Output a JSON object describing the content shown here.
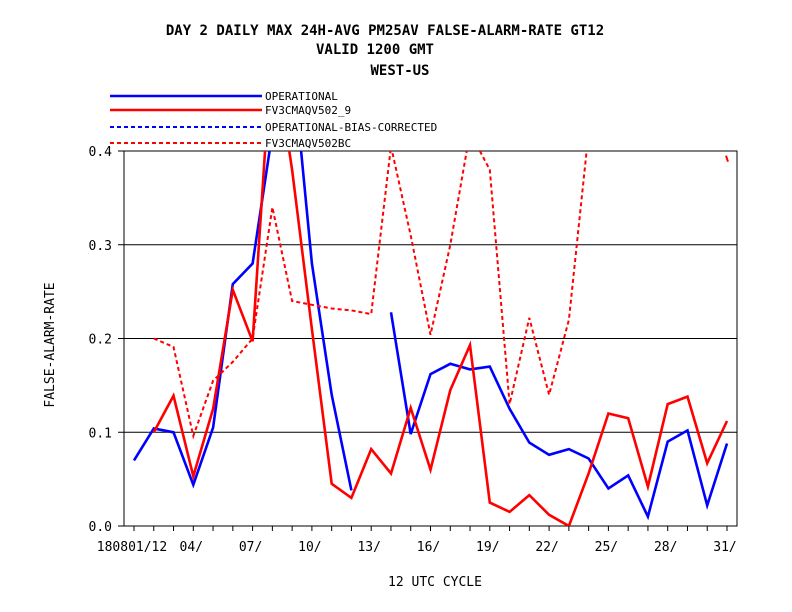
{
  "chart_data": {
    "type": "line",
    "title_lines": [
      "DAY 2 DAILY MAX   24H-AVG PM25AV FALSE-ALARM-RATE GT12",
      "VALID 1200 GMT",
      "WEST-US"
    ],
    "xlabel": "12 UTC CYCLE",
    "ylabel": "FALSE-ALARM-RATE",
    "ylim": [
      0.0,
      0.4
    ],
    "yticks": [
      "0.0",
      "0.1",
      "0.2",
      "0.3",
      "0.4"
    ],
    "xlim": [
      0,
      31
    ],
    "xtick_labels": [
      {
        "day": 1,
        "label": "180801/12"
      },
      {
        "day": 4,
        "label": "04/"
      },
      {
        "day": 7,
        "label": "07/"
      },
      {
        "day": 10,
        "label": "10/"
      },
      {
        "day": 13,
        "label": "13/"
      },
      {
        "day": 16,
        "label": "16/"
      },
      {
        "day": 19,
        "label": "19/"
      },
      {
        "day": 22,
        "label": "22/"
      },
      {
        "day": 25,
        "label": "25/"
      },
      {
        "day": 28,
        "label": "28/"
      },
      {
        "day": 31,
        "label": "31/"
      }
    ],
    "grid": "horizontal",
    "legend_position": "top-left",
    "series": [
      {
        "name": "OPERATIONAL",
        "color": "#0000ff",
        "dash": "solid",
        "points": [
          [
            1,
            0.07
          ],
          [
            2,
            0.104
          ],
          [
            3,
            0.1
          ],
          [
            4,
            0.044
          ],
          [
            5,
            0.105
          ],
          [
            6,
            0.258
          ],
          [
            7,
            0.28
          ],
          [
            8,
            0.42
          ],
          [
            9,
            0.5
          ],
          [
            10,
            0.28
          ],
          [
            11,
            0.14
          ],
          [
            12,
            0.038
          ],
          [
            14,
            0.228
          ],
          [
            15,
            0.098
          ],
          [
            16,
            0.162
          ],
          [
            17,
            0.173
          ],
          [
            18,
            0.167
          ],
          [
            19,
            0.17
          ],
          [
            20,
            0.125
          ],
          [
            21,
            0.089
          ],
          [
            22,
            0.076
          ],
          [
            23,
            0.082
          ],
          [
            24,
            0.072
          ],
          [
            25,
            0.04
          ],
          [
            26,
            0.054
          ],
          [
            27,
            0.01
          ],
          [
            28,
            0.09
          ],
          [
            29,
            0.102
          ],
          [
            30,
            0.022
          ],
          [
            31,
            0.088
          ]
        ]
      },
      {
        "name": "FV3CMAQV502_9",
        "color": "#ff0000",
        "dash": "solid",
        "points": [
          [
            2,
            0.1
          ],
          [
            3,
            0.139
          ],
          [
            4,
            0.053
          ],
          [
            5,
            0.125
          ],
          [
            6,
            0.252
          ],
          [
            7,
            0.197
          ],
          [
            8,
            0.52
          ],
          [
            9,
            0.38
          ],
          [
            10,
            0.21
          ],
          [
            11,
            0.045
          ],
          [
            12,
            0.03
          ],
          [
            13,
            0.082
          ],
          [
            14,
            0.056
          ],
          [
            15,
            0.126
          ],
          [
            16,
            0.06
          ],
          [
            17,
            0.145
          ],
          [
            18,
            0.193
          ],
          [
            19,
            0.025
          ],
          [
            20,
            0.015
          ],
          [
            21,
            0.033
          ],
          [
            22,
            0.012
          ],
          [
            23,
            0.0
          ],
          [
            24,
            0.056
          ],
          [
            25,
            0.12
          ],
          [
            26,
            0.115
          ],
          [
            27,
            0.042
          ],
          [
            28,
            0.13
          ],
          [
            29,
            0.138
          ],
          [
            30,
            0.067
          ],
          [
            31,
            0.112
          ]
        ]
      },
      {
        "name": "OPERATIONAL-BIAS-CORRECTED",
        "color": "#0000ff",
        "dash": "dashed",
        "points": []
      },
      {
        "name": "FV3CMAQV502BC",
        "color": "#ff0000",
        "dash": "dashed",
        "points": [
          [
            2,
            0.2
          ],
          [
            3,
            0.191
          ],
          [
            4,
            0.096
          ],
          [
            5,
            0.155
          ],
          [
            6,
            0.175
          ],
          [
            7,
            0.2
          ],
          [
            8,
            0.34
          ],
          [
            9,
            0.24
          ],
          [
            10,
            0.236
          ],
          [
            11,
            0.232
          ],
          [
            12,
            0.23
          ],
          [
            13,
            0.226
          ],
          [
            14,
            0.405
          ],
          [
            15,
            0.31
          ],
          [
            16,
            0.204
          ],
          [
            17,
            0.3
          ],
          [
            18,
            0.42
          ],
          [
            19,
            0.38
          ],
          [
            20,
            0.13
          ],
          [
            21,
            0.222
          ],
          [
            22,
            0.14
          ],
          [
            23,
            0.22
          ],
          [
            24,
            0.42
          ],
          [
            31,
            0.395
          ]
        ]
      }
    ]
  }
}
